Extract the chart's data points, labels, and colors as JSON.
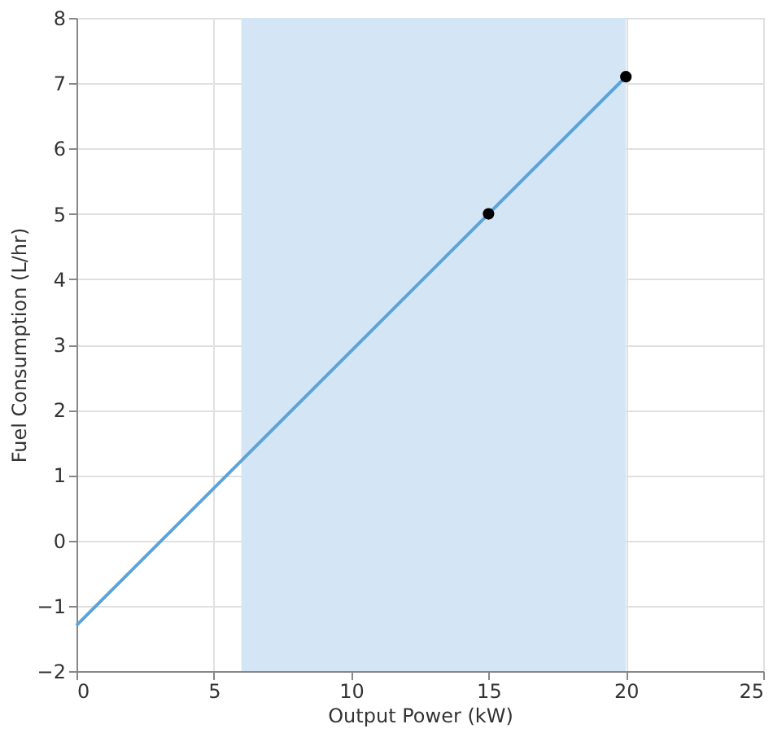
{
  "chart_data": {
    "type": "line",
    "xlabel": "Output Power (kW)",
    "ylabel": "Fuel Consumption (L/hr)",
    "series": [
      {
        "color": "#5ba3d9",
        "x": [
          0,
          20
        ],
        "values": [
          -1.3,
          7.1
        ],
        "marker": "none",
        "line_style": "solid"
      },
      {
        "type": "scatter",
        "color": "#000000",
        "x": [
          15,
          20
        ],
        "values": [
          5,
          7.1
        ],
        "marker": "circle"
      }
    ],
    "bands": [
      {
        "axis": "x",
        "from": 6,
        "to": 20,
        "color": "#d4e6f6"
      }
    ],
    "xlim": [
      0,
      25
    ],
    "xticks": [
      0,
      5,
      10,
      15,
      20,
      25
    ],
    "ylim": [
      -2,
      8
    ],
    "yticks": [
      -2,
      -1,
      0,
      1,
      2,
      3,
      4,
      5,
      6,
      7,
      8
    ],
    "grid": true
  }
}
